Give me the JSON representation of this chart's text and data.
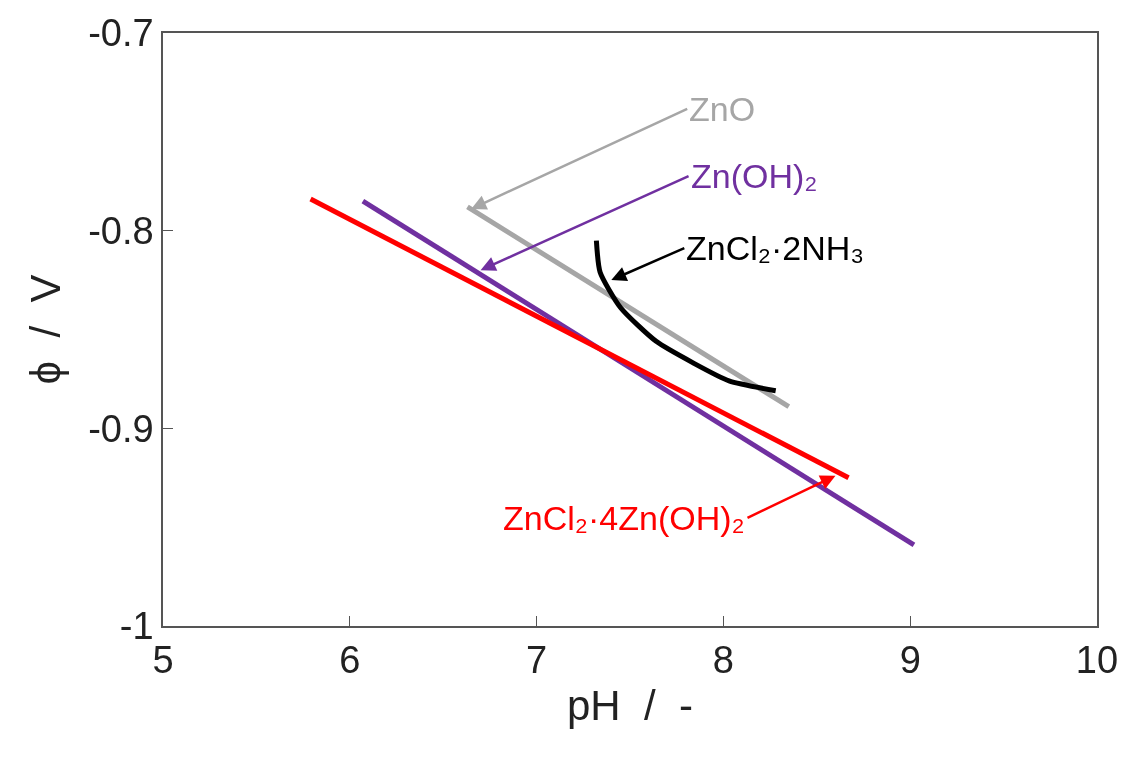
{
  "chart_data": {
    "type": "line",
    "xlabel": "pH  /  -",
    "ylabel": "ϕ  /  V",
    "xlim": [
      5,
      10
    ],
    "xticks": [
      5,
      6,
      7,
      8,
      9,
      10
    ],
    "ylim": [
      -1,
      -0.7
    ],
    "yticks": [
      -1,
      -0.9,
      -0.8,
      -0.7
    ],
    "grid": false,
    "marker": "none",
    "line_style": "solid",
    "series": [
      {
        "color": "#a6a6a6",
        "x": [
          6.63,
          8.35
        ],
        "values": [
          -0.788,
          -0.889
        ]
      },
      {
        "color": "#7030a0",
        "x": [
          6.07,
          9.02
        ],
        "values": [
          -0.785,
          -0.959
        ]
      },
      {
        "color": "#000000",
        "x": [
          7.32,
          7.34,
          7.45,
          7.64,
          7.84,
          8.03,
          8.28
        ],
        "values": [
          -0.805,
          -0.821,
          -0.839,
          -0.856,
          -0.867,
          -0.876,
          -0.881
        ]
      },
      {
        "color": "#ff0000",
        "x": [
          5.79,
          8.67
        ],
        "values": [
          -0.784,
          -0.925
        ]
      }
    ],
    "annotations": [
      {
        "text": "ZnO",
        "x": 6.65,
        "y": -0.789
      },
      {
        "text": "Zn(OH)₂",
        "x": 6.7,
        "y": -0.82
      },
      {
        "text": "ZnCl₂·2NH₃",
        "x": 7.4,
        "y": -0.825
      },
      {
        "text": "ZnCl₂·4Zn(OH)₂",
        "x": 8.6,
        "y": -0.924
      }
    ]
  }
}
